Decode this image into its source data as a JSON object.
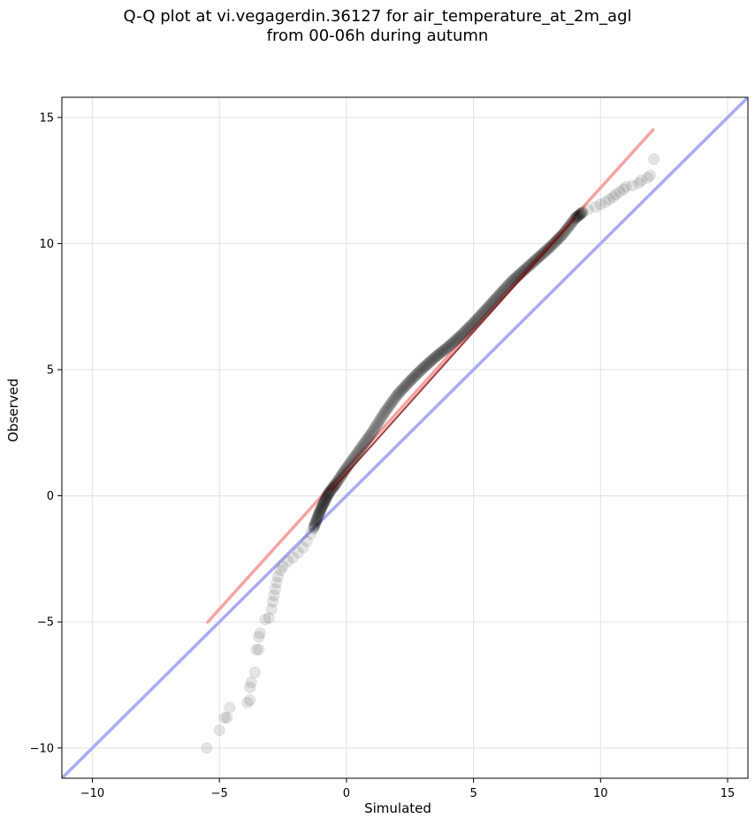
{
  "chart_data": {
    "type": "scatter",
    "title_line1": "Q-Q plot at vi.vegagerdin.36127 for air_temperature_at_2m_agl",
    "title_line2": "from 00-06h during autumn",
    "xlabel": "Simulated",
    "ylabel": "Observed",
    "xlim": [
      -11.2,
      15.8
    ],
    "ylim": [
      -11.2,
      15.8
    ],
    "xticks": [
      -10,
      -5,
      0,
      5,
      10,
      15
    ],
    "yticks": [
      -10,
      -5,
      0,
      5,
      10,
      15
    ],
    "xtick_labels": [
      "−10",
      "−5",
      "0",
      "5",
      "10",
      "15"
    ],
    "ytick_labels": [
      "−10",
      "−5",
      "0",
      "5",
      "10",
      "15"
    ],
    "grid": true,
    "identity_line": {
      "from": [
        -11.2,
        -11.2
      ],
      "to": [
        15.8,
        15.8
      ],
      "color": "#aaaaf5"
    },
    "fit_line": {
      "from": [
        -5.5,
        -5.05
      ],
      "to": [
        12.1,
        14.55
      ],
      "color": "#f5a3a3"
    },
    "fit_line_inner": {
      "from": [
        -0.6,
        0.2
      ],
      "to": [
        9.0,
        11.0
      ],
      "color": "#7a0000"
    },
    "point_color": "#000000",
    "sparse_points": [
      [
        -5.5,
        -10.0
      ],
      [
        -5.0,
        -9.3
      ],
      [
        -4.8,
        -8.8
      ],
      [
        -4.7,
        -8.8
      ],
      [
        -4.6,
        -8.4
      ],
      [
        -3.9,
        -8.2
      ],
      [
        -3.8,
        -8.1
      ],
      [
        -3.8,
        -7.6
      ],
      [
        -3.75,
        -7.4
      ],
      [
        -3.6,
        -7.0
      ],
      [
        -3.55,
        -6.1
      ],
      [
        -3.45,
        -6.1
      ],
      [
        -3.45,
        -5.6
      ],
      [
        -3.4,
        -5.45
      ],
      [
        -3.2,
        -4.9
      ],
      [
        -3.05,
        -4.85
      ],
      [
        -2.95,
        -4.5
      ],
      [
        -2.9,
        -4.2
      ],
      [
        -2.85,
        -3.95
      ],
      [
        -2.8,
        -3.7
      ],
      [
        -2.75,
        -3.45
      ],
      [
        -2.7,
        -3.2
      ],
      [
        -2.6,
        -2.95
      ],
      [
        -2.5,
        -2.8
      ],
      [
        -2.3,
        -2.6
      ],
      [
        -2.1,
        -2.45
      ],
      [
        -1.9,
        -2.25
      ],
      [
        -1.7,
        -2.05
      ],
      [
        -1.55,
        -1.8
      ],
      [
        -1.4,
        -1.5
      ],
      [
        9.5,
        11.35
      ],
      [
        9.8,
        11.45
      ],
      [
        10.0,
        11.55
      ],
      [
        10.2,
        11.65
      ],
      [
        10.35,
        11.75
      ],
      [
        10.5,
        11.85
      ],
      [
        10.6,
        11.95
      ],
      [
        10.75,
        12.05
      ],
      [
        10.9,
        12.15
      ],
      [
        11.0,
        12.25
      ],
      [
        11.25,
        12.3
      ],
      [
        11.5,
        12.4
      ],
      [
        11.6,
        12.5
      ],
      [
        11.85,
        12.6
      ],
      [
        11.95,
        12.7
      ],
      [
        12.1,
        13.35
      ]
    ],
    "dense_curve": [
      [
        -1.3,
        -1.3
      ],
      [
        -1.1,
        -0.75
      ],
      [
        -0.9,
        -0.3
      ],
      [
        -0.7,
        0.1
      ],
      [
        -0.4,
        0.5
      ],
      [
        0.0,
        1.1
      ],
      [
        0.5,
        1.8
      ],
      [
        1.0,
        2.5
      ],
      [
        1.5,
        3.3
      ],
      [
        2.0,
        4.0
      ],
      [
        2.5,
        4.55
      ],
      [
        3.0,
        5.05
      ],
      [
        3.5,
        5.5
      ],
      [
        4.0,
        5.9
      ],
      [
        4.5,
        6.35
      ],
      [
        5.0,
        6.85
      ],
      [
        5.5,
        7.4
      ],
      [
        6.0,
        7.95
      ],
      [
        6.5,
        8.5
      ],
      [
        7.0,
        8.95
      ],
      [
        7.5,
        9.4
      ],
      [
        8.0,
        9.85
      ],
      [
        8.5,
        10.35
      ],
      [
        9.0,
        11.0
      ],
      [
        9.3,
        11.25
      ]
    ]
  }
}
